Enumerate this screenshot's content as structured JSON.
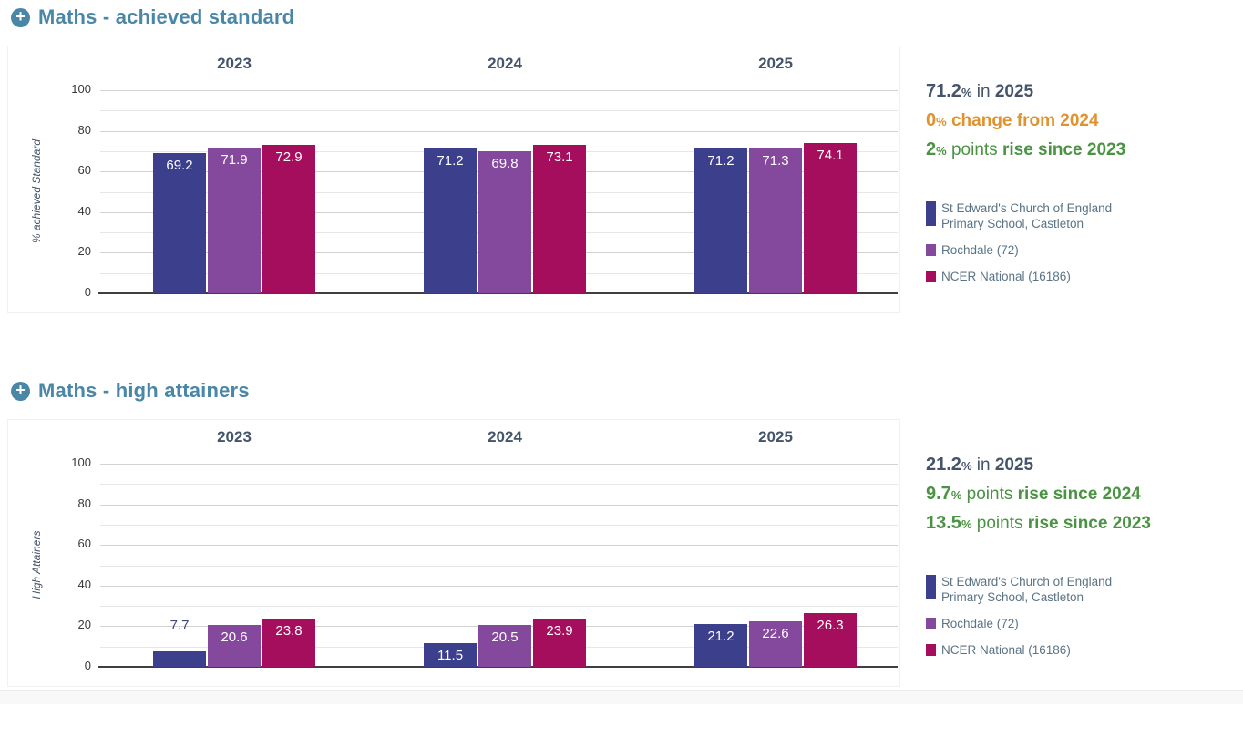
{
  "colors": {
    "accent_heading": "#4a87a7",
    "dark_text": "#44546a",
    "orange": "#e0922f",
    "green": "#4a9343",
    "legend_text": "#5b7486",
    "series": [
      "#3b3f8c",
      "#84489c",
      "#a50e5d"
    ],
    "grid_major": "#d2d2d2",
    "grid_minor": "#e7e7e7",
    "axis_line": "#3f3f3f"
  },
  "chart_data": [
    {
      "type": "bar",
      "title": "Maths - achieved standard",
      "ylabel": "% achieved Standard",
      "ylim": [
        0,
        100
      ],
      "yticks": [
        0,
        20,
        40,
        60,
        80,
        100
      ],
      "grid": "on",
      "legend_position": "right",
      "categories": [
        "2023",
        "2024",
        "2025"
      ],
      "series": [
        {
          "name": "St Edward's Church of England Primary School, Castleton",
          "values": [
            69.2,
            71.2,
            71.2
          ]
        },
        {
          "name": "Rochdale (72)",
          "values": [
            71.9,
            69.8,
            71.3
          ]
        },
        {
          "name": "NCER National (16186)",
          "values": [
            72.9,
            73.1,
            74.1
          ]
        }
      ],
      "summary": [
        {
          "value": "71.2",
          "unit": "%",
          "plain": " in ",
          "bold": "2025",
          "color": "#44546a"
        },
        {
          "value": "0",
          "unit": "%",
          "plain": " ",
          "bold": "change from 2024",
          "color": "#e0922f"
        },
        {
          "value": "2",
          "unit": "%",
          "plain": " points ",
          "bold": "rise since 2023",
          "color": "#4a9343"
        }
      ]
    },
    {
      "type": "bar",
      "title": "Maths - high attainers",
      "ylabel": "High Attainers",
      "ylim": [
        0,
        100
      ],
      "yticks": [
        0,
        20,
        40,
        60,
        80,
        100
      ],
      "grid": "on",
      "legend_position": "right",
      "categories": [
        "2023",
        "2024",
        "2025"
      ],
      "series": [
        {
          "name": "St Edward's Church of England Primary School, Castleton",
          "values": [
            7.7,
            11.5,
            21.2
          ]
        },
        {
          "name": "Rochdale (72)",
          "values": [
            20.6,
            20.5,
            22.6
          ]
        },
        {
          "name": "NCER National (16186)",
          "values": [
            23.8,
            23.9,
            26.3
          ]
        }
      ],
      "summary": [
        {
          "value": "21.2",
          "unit": "%",
          "plain": " in ",
          "bold": "2025",
          "color": "#44546a"
        },
        {
          "value": "9.7",
          "unit": "%",
          "plain": " points ",
          "bold": "rise since 2024",
          "color": "#4a9343"
        },
        {
          "value": "13.5",
          "unit": "%",
          "plain": " points ",
          "bold": "rise since 2023",
          "color": "#4a9343"
        }
      ]
    }
  ]
}
